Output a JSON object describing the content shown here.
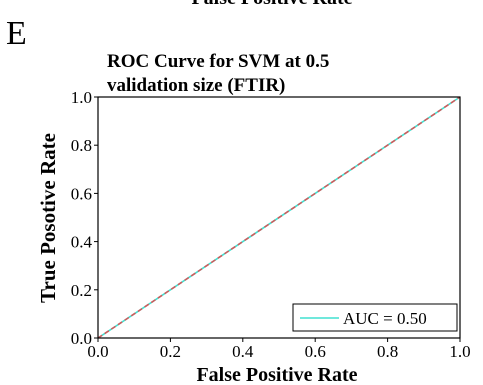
{
  "panel_label": "E",
  "cropped_top_text": "False Positive Rate",
  "chart_data": {
    "type": "line",
    "title_lines": [
      "ROC Curve for SVM at 0.5",
      "validation size (FTIR)"
    ],
    "xlabel": "False Positive Rate",
    "ylabel": "True Posotive Rate",
    "xlim": [
      0.0,
      1.0
    ],
    "ylim": [
      0.0,
      1.0
    ],
    "xticks": [
      "0.0",
      "0.2",
      "0.4",
      "0.6",
      "0.8",
      "1.0"
    ],
    "yticks": [
      "0.0",
      "0.2",
      "0.4",
      "0.6",
      "0.8",
      "1.0"
    ],
    "grid": false,
    "legend_position": "bottom-right",
    "series": [
      {
        "name": "AUC = 0.50",
        "x": [
          0.0,
          1.0
        ],
        "y": [
          0.0,
          1.0
        ],
        "color": "#40e0d0",
        "style": "solid"
      },
      {
        "name": "",
        "x": [
          0.0,
          1.0
        ],
        "y": [
          0.0,
          1.0
        ],
        "color": "#cd5c5c",
        "style": "dashed"
      }
    ]
  }
}
